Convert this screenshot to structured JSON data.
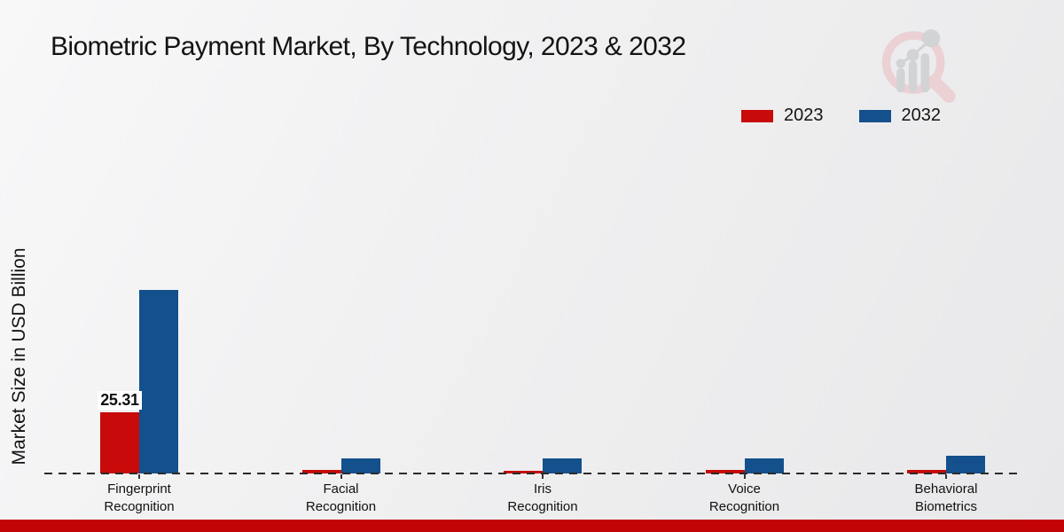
{
  "title": "Biometric Payment Market, By Technology, 2023 & 2032",
  "icons": {
    "logo": "magnifier-bar-chart-watermark"
  },
  "footer_strip_color": "#c20404",
  "chart_data": {
    "type": "bar",
    "title": "Biometric Payment Market, By Technology, 2023 & 2032",
    "xlabel": "",
    "ylabel": "Market Size in USD Billion",
    "categories": [
      "Fingerprint Recognition",
      "Facial Recognition",
      "Iris Recognition",
      "Voice Recognition",
      "Behavioral Biometrics"
    ],
    "series": [
      {
        "name": "2023",
        "color": "#c80a0a",
        "values": [
          25.31,
          1.5,
          1.2,
          1.4,
          1.5
        ]
      },
      {
        "name": "2032",
        "color": "#14508c",
        "values": [
          76.0,
          6.2,
          6.1,
          6.3,
          7.3
        ]
      }
    ],
    "bar_labels": [
      {
        "series_index": 0,
        "category_index": 0,
        "text": "25.31"
      }
    ],
    "ylim": [
      0,
      80
    ],
    "grid": false,
    "baseline_style": "dashed",
    "legend_position": "top-right",
    "axis_note": "only the 2023 Fingerprint Recognition bar is labeled; other values estimated from bar heights"
  }
}
